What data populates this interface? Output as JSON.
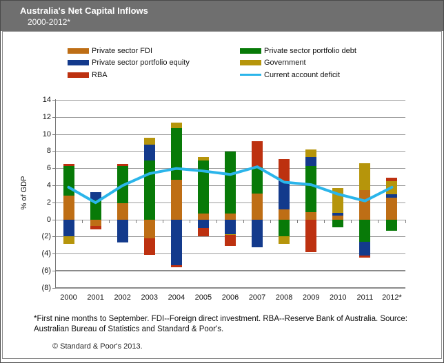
{
  "header": {
    "title": "Australia's Net Capital Inflows",
    "subtitle": "2000-2012*"
  },
  "chart_data": {
    "type": "bar",
    "subtype": "stacked-bar-with-line",
    "title": "Australia's Net Capital Inflows 2000-2012*",
    "ylabel": "% of GDP",
    "xlabel": "",
    "ylim": [
      -8,
      14
    ],
    "ytick_step": 2,
    "negative_label_format": "parentheses",
    "grid": true,
    "legend_position": "top",
    "categories": [
      "2000",
      "2001",
      "2002",
      "2003",
      "2004",
      "2005",
      "2006",
      "2007",
      "2008",
      "2009",
      "2010",
      "2011",
      "2012*"
    ],
    "series": [
      {
        "name": "Private sector FDI",
        "color": "#BE6E15",
        "values": [
          2.8,
          -0.7,
          1.9,
          -2.2,
          4.7,
          0.7,
          0.7,
          3.1,
          1.2,
          0.9,
          0.5,
          3.5,
          2.6
        ]
      },
      {
        "name": "Private sector portfolio debt",
        "color": "#087A08",
        "values": [
          3.5,
          2.3,
          4.4,
          6.9,
          6.0,
          6.2,
          7.3,
          3.0,
          -1.9,
          5.4,
          -0.9,
          -2.6,
          -1.3
        ]
      },
      {
        "name": "Private sector portfolio equity",
        "color": "#133A8C",
        "values": [
          -1.9,
          0.9,
          -2.7,
          1.9,
          -5.3,
          -1.0,
          -1.7,
          -3.2,
          3.3,
          1.0,
          0.3,
          -1.6,
          0.4
        ]
      },
      {
        "name": "Government",
        "color": "#B6950B",
        "values": [
          -0.9,
          0.0,
          0.0,
          0.8,
          0.7,
          0.4,
          -0.1,
          0.0,
          -0.9,
          0.9,
          2.9,
          3.1,
          1.5
        ]
      },
      {
        "name": "RBA",
        "color": "#BD3110",
        "values": [
          0.2,
          -0.4,
          0.2,
          -1.9,
          -0.3,
          -0.9,
          -1.3,
          3.1,
          2.6,
          -3.8,
          0.0,
          -0.2,
          0.4
        ]
      }
    ],
    "line_series": {
      "name": "Current account deficit",
      "color": "#2BB5EA",
      "values": [
        3.8,
        2.0,
        4.0,
        5.4,
        6.0,
        5.7,
        5.3,
        6.2,
        4.4,
        4.1,
        3.0,
        2.2,
        3.8
      ]
    },
    "legend_columns": [
      [
        "Private sector FDI",
        "Private sector portfolio equity",
        "RBA"
      ],
      [
        "Private sector portfolio debt",
        "Government",
        "Current account deficit"
      ]
    ]
  },
  "footnote": "*First nine months to September. FDI--Foreign direct investment. RBA--Reserve Bank of Australia. Source: Australian Bureau of Statistics and Standard & Poor's.",
  "copyright": "© Standard & Poor's 2013."
}
